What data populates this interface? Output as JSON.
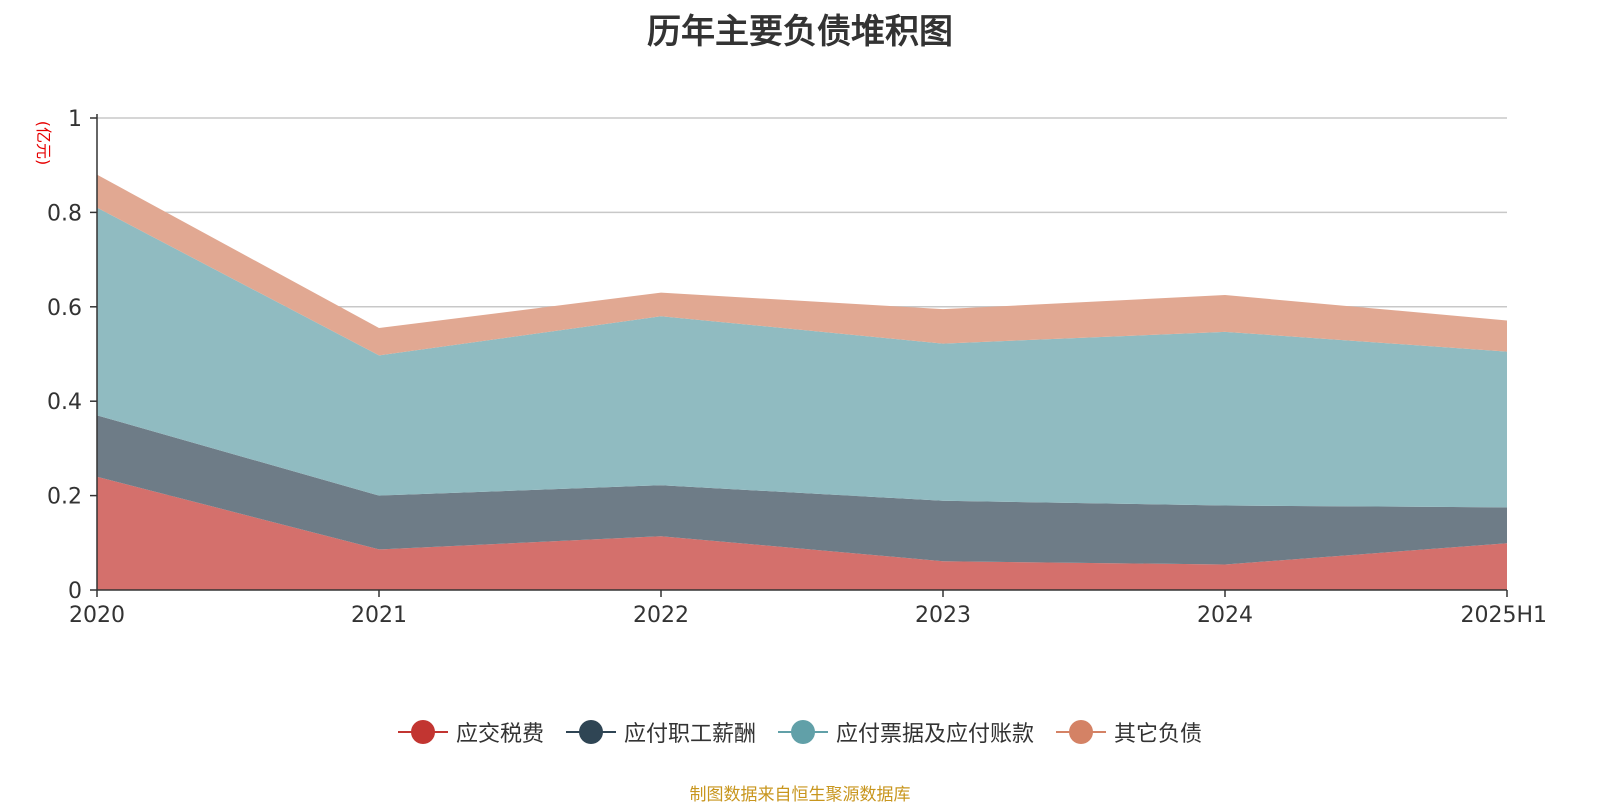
{
  "chart_data": {
    "type": "area",
    "stacked": true,
    "title": "历年主要负债堆积图",
    "unit_label": "(亿元)",
    "categories": [
      "2020",
      "2021",
      "2022",
      "2023",
      "2024",
      "2025H1"
    ],
    "ylim": [
      0,
      1
    ],
    "yticks": [
      0,
      0.2,
      0.4,
      0.6,
      0.8,
      1
    ],
    "ytick_labels": [
      "0",
      "0.2",
      "0.4",
      "0.6",
      "0.8",
      "1"
    ],
    "grid": true,
    "legend_position": "bottom",
    "series": [
      {
        "name": "应交税费",
        "values": [
          0.24,
          0.086,
          0.114,
          0.061,
          0.054,
          0.099
        ],
        "color": "#c23531",
        "fill": "#d4706c"
      },
      {
        "name": "应付职工薪酬",
        "values": [
          0.13,
          0.114,
          0.108,
          0.128,
          0.125,
          0.076
        ],
        "color": "#2f4554",
        "fill": "#6e7c87"
      },
      {
        "name": "应付票据及应付账款",
        "values": [
          0.44,
          0.297,
          0.358,
          0.333,
          0.368,
          0.33
        ],
        "color": "#61a0a8",
        "fill": "#90bbc1"
      },
      {
        "name": "其它负债",
        "values": [
          0.07,
          0.058,
          0.05,
          0.073,
          0.078,
          0.066
        ],
        "color": "#d48265",
        "fill": "#e1a892"
      }
    ]
  },
  "source_note": "制图数据来自恒生聚源数据库"
}
